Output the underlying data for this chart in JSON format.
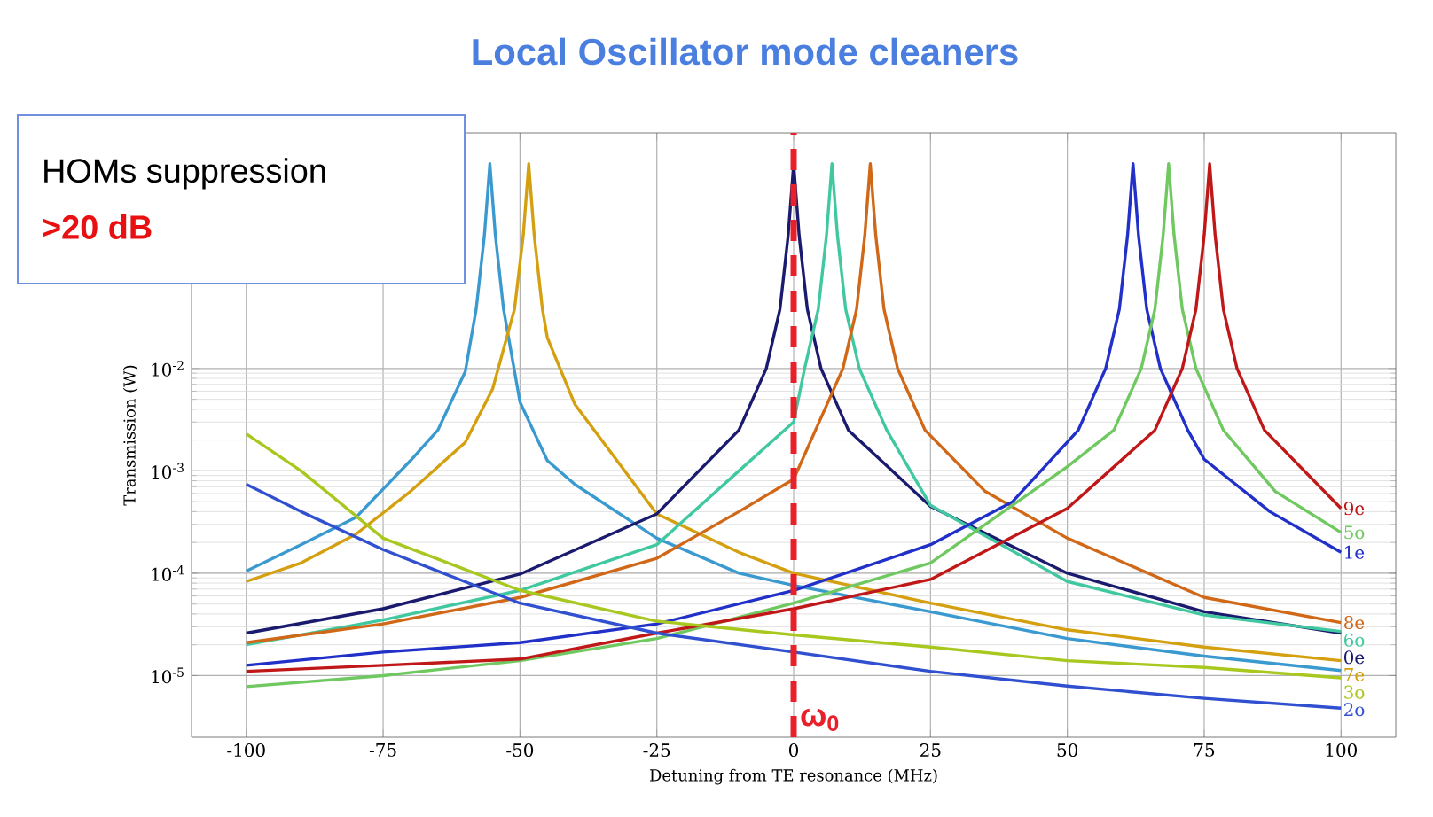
{
  "chart_data": {
    "type": "line",
    "title": "Local Oscillator mode cleaners",
    "xlabel": "Detuning from TE resonance (MHz)",
    "ylabel": "Transmission (W)",
    "annotations": [
      "HOMs suppression",
      ">20 dB"
    ],
    "log": "y",
    "grid": true,
    "xlim": [
      -110,
      110
    ],
    "ylim": [
      2.5e-06,
      2
    ],
    "xticks": [
      -100,
      -75,
      -50,
      -25,
      0,
      25,
      50,
      75,
      100
    ],
    "yticks": [
      {
        "value": 1e-05,
        "label": "10$^{-5}$"
      },
      {
        "value": 0.0001,
        "label": "10$^{-4}$"
      },
      {
        "value": 0.001,
        "label": "10$^{-3}$"
      },
      {
        "value": 0.01,
        "label": "10$^{-2}$"
      }
    ],
    "ref_lines": [
      {
        "axis": "x",
        "value": 0,
        "label": "ω$_{0}$",
        "color": "#e8202a",
        "line_style": "dashed"
      }
    ],
    "series": [
      {
        "color": "#3a9ad0",
        "x": [
          -100,
          -90,
          -80,
          -70,
          -65,
          -60,
          -58,
          -56.5,
          -55.5,
          -54.5,
          -53,
          -50,
          -45,
          -40,
          -25,
          -10,
          0,
          25,
          50,
          75,
          100
        ],
        "values": [
          0.000105,
          0.00019,
          0.00035,
          0.00126,
          0.0025,
          0.0093,
          0.038,
          0.2,
          1,
          0.2,
          0.038,
          0.0047,
          0.00126,
          0.00074,
          0.00022,
          0.0001,
          7.6e-05,
          4.2e-05,
          2.3e-05,
          1.55e-05,
          1.12e-05
        ]
      },
      {
        "name": "7e",
        "color": "#d4a010",
        "x": [
          -100,
          -90,
          -80,
          -70,
          -60,
          -55,
          -51,
          -49.4,
          -48.4,
          -47.4,
          -45.9,
          -45,
          -40,
          -25,
          -10,
          0,
          25,
          50,
          75,
          100
        ],
        "values": [
          8.3e-05,
          0.000126,
          0.00024,
          0.00063,
          0.0019,
          0.0063,
          0.038,
          0.2,
          1,
          0.2,
          0.038,
          0.02,
          0.0045,
          0.00038,
          0.00016,
          0.0001,
          5.1e-05,
          2.8e-05,
          1.9e-05,
          1.4e-05
        ]
      },
      {
        "name": "0e",
        "color": "#1a1a6e",
        "x": [
          -100,
          -75,
          -50,
          -25,
          -10,
          -5,
          -2.5,
          -1,
          0,
          1,
          2.5,
          5,
          10,
          25,
          50,
          75,
          100
        ],
        "values": [
          2.6e-05,
          4.5e-05,
          9.8e-05,
          0.00038,
          0.0025,
          0.01,
          0.038,
          0.2,
          1,
          0.2,
          0.038,
          0.01,
          0.0025,
          0.00045,
          0.0001,
          4.2e-05,
          2.6e-05
        ]
      },
      {
        "name": "6o",
        "color": "#40c8a0",
        "x": [
          -100,
          -75,
          -50,
          -25,
          -10,
          0,
          2,
          4.5,
          6,
          7,
          8,
          9.5,
          12,
          17,
          25,
          50,
          75,
          100
        ],
        "values": [
          2e-05,
          3.5e-05,
          6.8e-05,
          0.00019,
          0.001,
          0.003,
          0.01,
          0.038,
          0.2,
          1,
          0.2,
          0.038,
          0.01,
          0.0025,
          0.00046,
          8.3e-05,
          3.9e-05,
          2.7e-05
        ]
      },
      {
        "name": "8e",
        "color": "#d06818",
        "x": [
          -100,
          -75,
          -50,
          -25,
          -10,
          0,
          4,
          9,
          11.5,
          13,
          14,
          15,
          16.5,
          19,
          24,
          35,
          50,
          75,
          100
        ],
        "values": [
          2.1e-05,
          3.2e-05,
          5.8e-05,
          0.00014,
          0.0004,
          0.00083,
          0.0025,
          0.01,
          0.038,
          0.2,
          1,
          0.2,
          0.038,
          0.01,
          0.0025,
          0.00063,
          0.00022,
          5.8e-05,
          3.3e-05
        ]
      },
      {
        "name": "1e",
        "color": "#2030c8",
        "x": [
          -100,
          -75,
          -50,
          -25,
          0,
          25,
          40,
          52,
          57,
          59.5,
          61,
          62,
          63,
          64.5,
          67,
          72,
          75,
          87,
          100
        ],
        "values": [
          1.26e-05,
          1.7e-05,
          2.1e-05,
          3.2e-05,
          6.8e-05,
          0.00019,
          0.0005,
          0.0025,
          0.01,
          0.038,
          0.2,
          1,
          0.2,
          0.038,
          0.01,
          0.0025,
          0.0013,
          0.0004,
          0.00016
        ]
      },
      {
        "name": "5o",
        "color": "#70c860",
        "x": [
          -100,
          -75,
          -50,
          -25,
          0,
          25,
          50,
          58.5,
          63.5,
          66,
          67.5,
          68.5,
          69.5,
          71,
          73.5,
          78.5,
          88,
          100
        ],
        "values": [
          7.8e-06,
          1e-05,
          1.4e-05,
          2.3e-05,
          5.1e-05,
          0.000126,
          0.0011,
          0.0025,
          0.01,
          0.038,
          0.2,
          1,
          0.2,
          0.038,
          0.01,
          0.0025,
          0.00063,
          0.00025
        ]
      },
      {
        "name": "9e",
        "color": "#c01818",
        "x": [
          -100,
          -75,
          -50,
          -25,
          0,
          25,
          50,
          66,
          71,
          73.5,
          75,
          76,
          77,
          78.5,
          81,
          86,
          100
        ],
        "values": [
          1.1e-05,
          1.26e-05,
          1.45e-05,
          2.6e-05,
          4.5e-05,
          8.7e-05,
          0.00043,
          0.0025,
          0.01,
          0.038,
          0.2,
          1,
          0.2,
          0.038,
          0.01,
          0.0025,
          0.00043
        ]
      },
      {
        "name": "3o",
        "color": "#a8c820",
        "x": [
          -100,
          -90,
          -75,
          -50,
          -25,
          0,
          25,
          50,
          75,
          100
        ],
        "values": [
          0.0023,
          0.001,
          0.00022,
          6.8e-05,
          3.4e-05,
          2.5e-05,
          1.9e-05,
          1.4e-05,
          1.2e-05,
          9.5e-06
        ]
      },
      {
        "name": "2o",
        "color": "#3050d0",
        "x": [
          -100,
          -90,
          -75,
          -50,
          -25,
          0,
          25,
          50,
          75,
          100
        ],
        "values": [
          0.00074,
          0.0004,
          0.00017,
          5.1e-05,
          2.6e-05,
          1.7e-05,
          1.1e-05,
          7.9e-06,
          6e-06,
          4.8e-06
        ]
      }
    ]
  }
}
